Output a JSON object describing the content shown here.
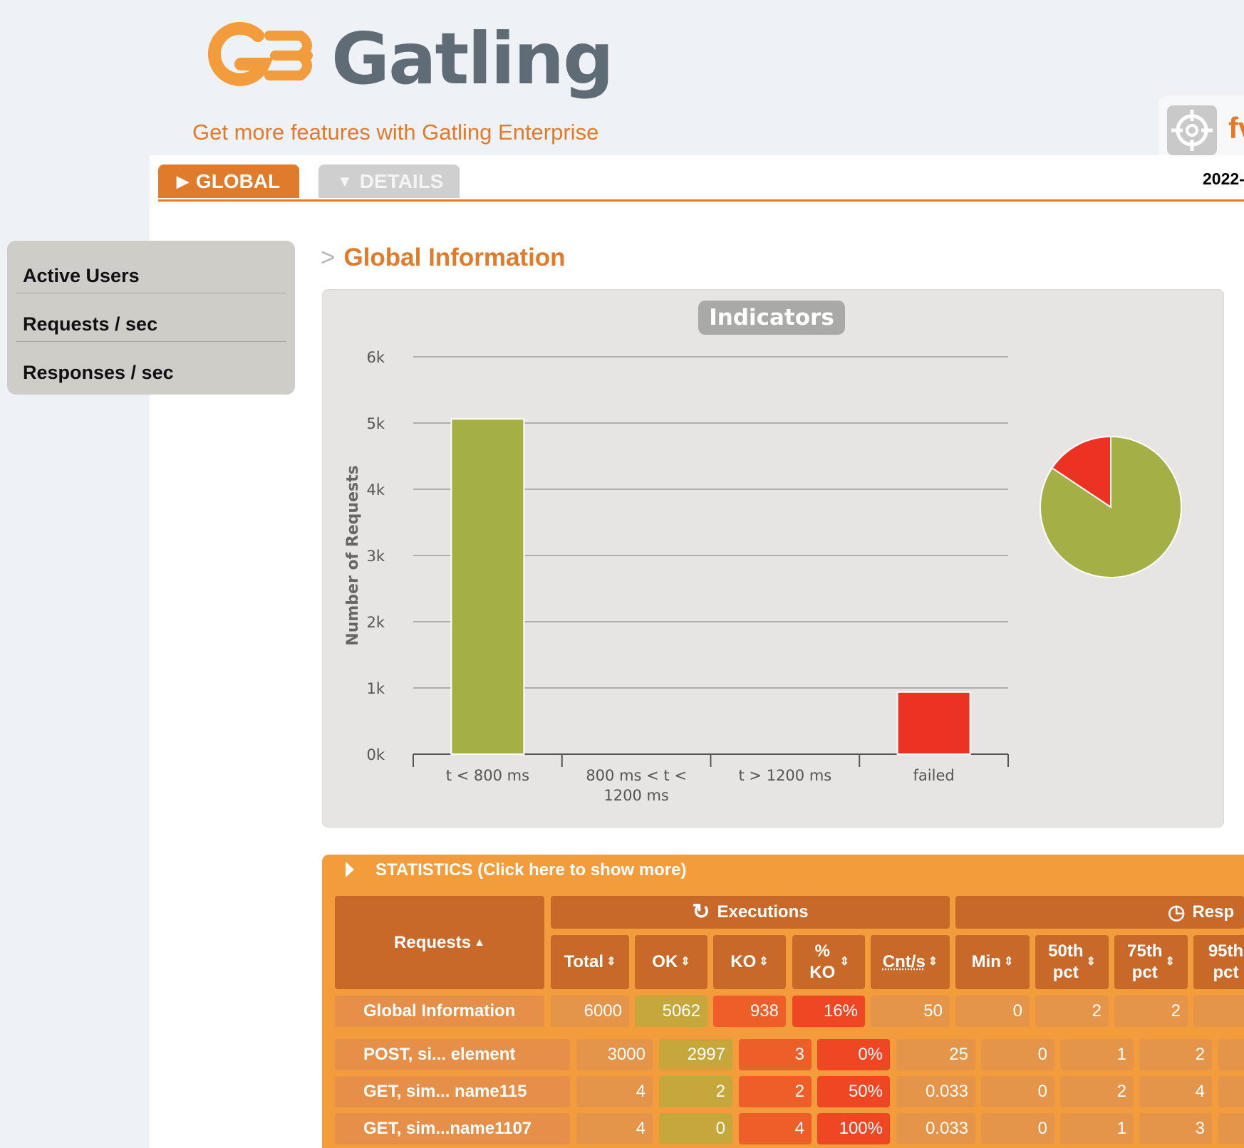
{
  "header": {
    "logo_text": "Gatling",
    "enterprise_link": "Get more features with Gatling Enterprise",
    "simulation_name_partial": "fv",
    "run_date_partial": "2022-"
  },
  "tabs": [
    {
      "label": "GLOBAL",
      "active": true
    },
    {
      "label": "DETAILS",
      "active": false
    }
  ],
  "sidebar": {
    "items": [
      {
        "label": "Active Users"
      },
      {
        "label": "Requests / sec"
      },
      {
        "label": "Responses / sec"
      }
    ]
  },
  "section": {
    "title": "Global Information"
  },
  "chart_data": {
    "type": "bar",
    "title": "Indicators",
    "ylabel": "Number of Requests",
    "ylim": [
      0,
      6000
    ],
    "ytick_labels": [
      "0k",
      "1k",
      "2k",
      "3k",
      "4k",
      "5k",
      "6k"
    ],
    "categories": [
      "t < 800 ms",
      "800 ms < t < 1200 ms",
      "t > 1200 ms",
      "failed"
    ],
    "category_lines": [
      [
        "t < 800 ms"
      ],
      [
        "800 ms < t <",
        "1200 ms"
      ],
      [
        "t > 1200 ms"
      ],
      [
        "failed"
      ]
    ],
    "values": [
      5062,
      0,
      0,
      938
    ],
    "colors": [
      "#a4b046",
      "#f1b432",
      "#f08a1a",
      "#eb3223"
    ],
    "pie": {
      "slices": [
        {
          "label": "t < 800 ms",
          "value": 5062,
          "color": "#a4b046"
        },
        {
          "label": "failed",
          "value": 938,
          "color": "#eb3223"
        }
      ]
    }
  },
  "statistics": {
    "toggle_label": "STATISTICS (Click here to show more)",
    "group_executions": "Executions",
    "group_response_partial": "Resp",
    "col_requests": "Requests",
    "columns": [
      "Total",
      "OK",
      "KO",
      "% KO",
      "Cnt/s",
      "Min",
      "50th pct",
      "75th pct",
      "95th pct"
    ],
    "global_row": {
      "name": "Global Information",
      "values": [
        "6000",
        "5062",
        "938",
        "16%",
        "50",
        "0",
        "2",
        "2",
        ""
      ]
    },
    "rows": [
      {
        "name": "POST, si... element",
        "values": [
          "3000",
          "2997",
          "3",
          "0%",
          "25",
          "0",
          "1",
          "2",
          ""
        ]
      },
      {
        "name": "GET, sim... name115",
        "values": [
          "4",
          "2",
          "2",
          "50%",
          "0.033",
          "0",
          "2",
          "4",
          ""
        ]
      },
      {
        "name": "GET, sim...name1107",
        "values": [
          "4",
          "0",
          "4",
          "100%",
          "0.033",
          "0",
          "1",
          "3",
          ""
        ]
      }
    ]
  },
  "colors": {
    "accent": "#e07b2b",
    "ok": "#a4b046",
    "ko": "#eb3223",
    "stats_bg": "#f39c3c"
  }
}
